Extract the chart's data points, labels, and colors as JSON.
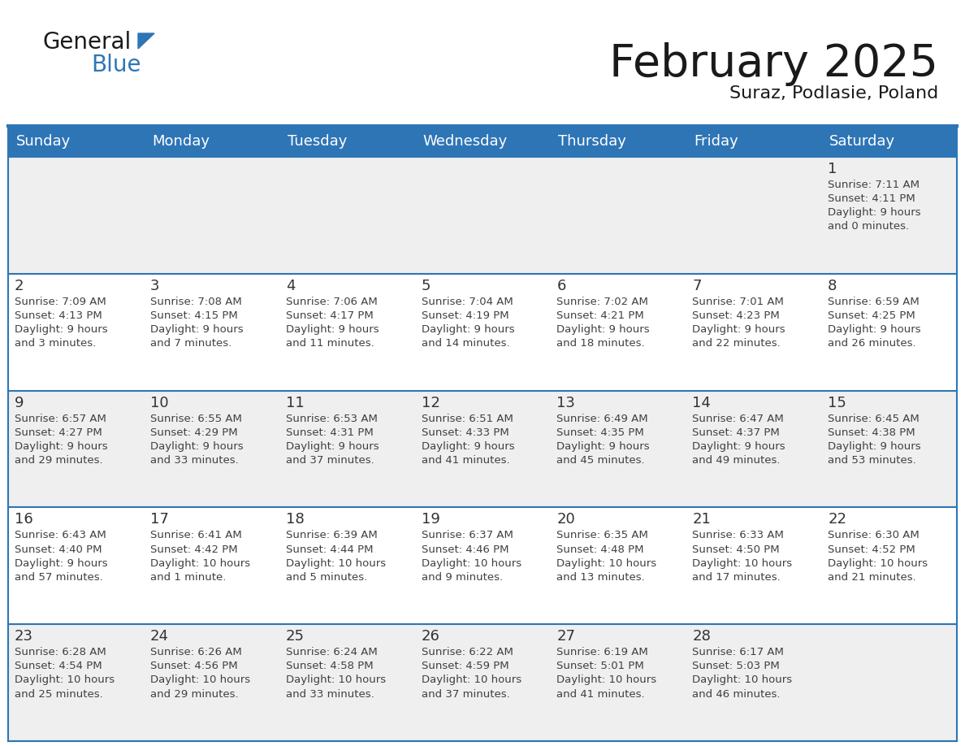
{
  "title": "February 2025",
  "subtitle": "Suraz, Podlasie, Poland",
  "header_color": "#2E75B6",
  "header_text_color": "#FFFFFF",
  "row_bg_odd": "#EFEFEF",
  "row_bg_even": "#FFFFFF",
  "border_color": "#2E75B6",
  "cell_text_color": "#404040",
  "day_num_color": "#333333",
  "day_names": [
    "Sunday",
    "Monday",
    "Tuesday",
    "Wednesday",
    "Thursday",
    "Friday",
    "Saturday"
  ],
  "weeks": [
    [
      null,
      null,
      null,
      null,
      null,
      null,
      {
        "day": 1,
        "sunrise": "7:11 AM",
        "sunset": "4:11 PM",
        "daylight_hours": 9,
        "daylight_minutes": 0
      }
    ],
    [
      {
        "day": 2,
        "sunrise": "7:09 AM",
        "sunset": "4:13 PM",
        "daylight_hours": 9,
        "daylight_minutes": 3
      },
      {
        "day": 3,
        "sunrise": "7:08 AM",
        "sunset": "4:15 PM",
        "daylight_hours": 9,
        "daylight_minutes": 7
      },
      {
        "day": 4,
        "sunrise": "7:06 AM",
        "sunset": "4:17 PM",
        "daylight_hours": 9,
        "daylight_minutes": 11
      },
      {
        "day": 5,
        "sunrise": "7:04 AM",
        "sunset": "4:19 PM",
        "daylight_hours": 9,
        "daylight_minutes": 14
      },
      {
        "day": 6,
        "sunrise": "7:02 AM",
        "sunset": "4:21 PM",
        "daylight_hours": 9,
        "daylight_minutes": 18
      },
      {
        "day": 7,
        "sunrise": "7:01 AM",
        "sunset": "4:23 PM",
        "daylight_hours": 9,
        "daylight_minutes": 22
      },
      {
        "day": 8,
        "sunrise": "6:59 AM",
        "sunset": "4:25 PM",
        "daylight_hours": 9,
        "daylight_minutes": 26
      }
    ],
    [
      {
        "day": 9,
        "sunrise": "6:57 AM",
        "sunset": "4:27 PM",
        "daylight_hours": 9,
        "daylight_minutes": 29
      },
      {
        "day": 10,
        "sunrise": "6:55 AM",
        "sunset": "4:29 PM",
        "daylight_hours": 9,
        "daylight_minutes": 33
      },
      {
        "day": 11,
        "sunrise": "6:53 AM",
        "sunset": "4:31 PM",
        "daylight_hours": 9,
        "daylight_minutes": 37
      },
      {
        "day": 12,
        "sunrise": "6:51 AM",
        "sunset": "4:33 PM",
        "daylight_hours": 9,
        "daylight_minutes": 41
      },
      {
        "day": 13,
        "sunrise": "6:49 AM",
        "sunset": "4:35 PM",
        "daylight_hours": 9,
        "daylight_minutes": 45
      },
      {
        "day": 14,
        "sunrise": "6:47 AM",
        "sunset": "4:37 PM",
        "daylight_hours": 9,
        "daylight_minutes": 49
      },
      {
        "day": 15,
        "sunrise": "6:45 AM",
        "sunset": "4:38 PM",
        "daylight_hours": 9,
        "daylight_minutes": 53
      }
    ],
    [
      {
        "day": 16,
        "sunrise": "6:43 AM",
        "sunset": "4:40 PM",
        "daylight_hours": 9,
        "daylight_minutes": 57
      },
      {
        "day": 17,
        "sunrise": "6:41 AM",
        "sunset": "4:42 PM",
        "daylight_hours": 10,
        "daylight_minutes": 1
      },
      {
        "day": 18,
        "sunrise": "6:39 AM",
        "sunset": "4:44 PM",
        "daylight_hours": 10,
        "daylight_minutes": 5
      },
      {
        "day": 19,
        "sunrise": "6:37 AM",
        "sunset": "4:46 PM",
        "daylight_hours": 10,
        "daylight_minutes": 9
      },
      {
        "day": 20,
        "sunrise": "6:35 AM",
        "sunset": "4:48 PM",
        "daylight_hours": 10,
        "daylight_minutes": 13
      },
      {
        "day": 21,
        "sunrise": "6:33 AM",
        "sunset": "4:50 PM",
        "daylight_hours": 10,
        "daylight_minutes": 17
      },
      {
        "day": 22,
        "sunrise": "6:30 AM",
        "sunset": "4:52 PM",
        "daylight_hours": 10,
        "daylight_minutes": 21
      }
    ],
    [
      {
        "day": 23,
        "sunrise": "6:28 AM",
        "sunset": "4:54 PM",
        "daylight_hours": 10,
        "daylight_minutes": 25
      },
      {
        "day": 24,
        "sunrise": "6:26 AM",
        "sunset": "4:56 PM",
        "daylight_hours": 10,
        "daylight_minutes": 29
      },
      {
        "day": 25,
        "sunrise": "6:24 AM",
        "sunset": "4:58 PM",
        "daylight_hours": 10,
        "daylight_minutes": 33
      },
      {
        "day": 26,
        "sunrise": "6:22 AM",
        "sunset": "4:59 PM",
        "daylight_hours": 10,
        "daylight_minutes": 37
      },
      {
        "day": 27,
        "sunrise": "6:19 AM",
        "sunset": "5:01 PM",
        "daylight_hours": 10,
        "daylight_minutes": 41
      },
      {
        "day": 28,
        "sunrise": "6:17 AM",
        "sunset": "5:03 PM",
        "daylight_hours": 10,
        "daylight_minutes": 46
      },
      null
    ]
  ],
  "logo_text1": "General",
  "logo_text2": "Blue",
  "logo_color1": "#1a1a1a",
  "logo_color2": "#2E75B6",
  "logo_triangle_color": "#2E75B6",
  "title_fontsize": 40,
  "subtitle_fontsize": 16,
  "dayname_fontsize": 13,
  "daynum_fontsize": 13,
  "cell_fontsize": 9.5
}
